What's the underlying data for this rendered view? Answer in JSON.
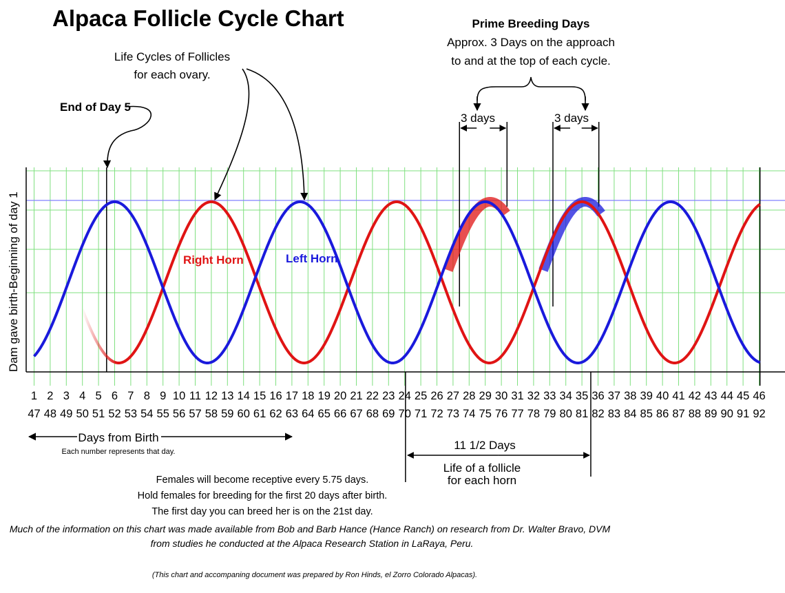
{
  "header": {
    "title": "Alpaca Follicle Cycle Chart"
  },
  "annotations": {
    "prime_title": "Prime Breeding Days",
    "prime_line1": "Approx. 3 Days on the approach",
    "prime_line2": "to and at the top of each cycle.",
    "life_cycles_line1": "Life Cycles of Follicles",
    "life_cycles_line2": "for each ovary.",
    "end_of_day5": "End of Day 5",
    "three_days_a": "3 days",
    "three_days_b": "3 days",
    "right_horn": "Right Horn",
    "left_horn": "Left Horn",
    "ylabel": "Dam gave birth-Beginning of day 1",
    "days_from_birth": "Days from Birth",
    "days_from_birth_sub": "Each number represents that day.",
    "follicle_days": "11 1/2 Days",
    "follicle_life_line1": "Life of a follicle",
    "follicle_life_line2": "for each horn"
  },
  "notes": {
    "line1": "Females will become receptive every 5.75 days.",
    "line2": "Hold females for breeding for the first 20 days after birth.",
    "line3": "The first day you can breed her is on the 21st day.",
    "italic1": "Much of the information on this chart was made available from Bob and Barb Hance (Hance Ranch) on research from Dr. Walter Bravo, DVM",
    "italic2": "from studies he conducted at the Alpaca Research Station in LaRaya, Peru.",
    "credit": "(This chart and accompaning document was prepared by Ron Hinds, el Zorro Colorado Alpacas)."
  },
  "chart_data": {
    "type": "line",
    "title": "Alpaca Follicle Cycle Chart",
    "ylabel": "Dam gave birth-Beginning of day 1",
    "xlabel": "Days from Birth",
    "x_row1": [
      1,
      2,
      3,
      4,
      5,
      6,
      7,
      8,
      9,
      10,
      11,
      12,
      13,
      14,
      15,
      16,
      17,
      18,
      19,
      20,
      21,
      22,
      23,
      24,
      25,
      26,
      27,
      28,
      29,
      30,
      31,
      32,
      33,
      34,
      35,
      36,
      37,
      38,
      39,
      40,
      41,
      42,
      43,
      44,
      45,
      46
    ],
    "x_row2": [
      47,
      48,
      49,
      50,
      51,
      52,
      53,
      54,
      55,
      56,
      57,
      58,
      59,
      60,
      61,
      62,
      63,
      64,
      65,
      66,
      67,
      68,
      69,
      70,
      71,
      72,
      73,
      74,
      75,
      76,
      77,
      78,
      79,
      80,
      81,
      82,
      83,
      84,
      85,
      86,
      87,
      88,
      89,
      90,
      91,
      92
    ],
    "period_days": 11.5,
    "receptive_every_days": 5.75,
    "series": [
      {
        "name": "Left Horn",
        "color": "#1a1adc",
        "peak_days": [
          6.0,
          17.5,
          29.0,
          40.5
        ],
        "trough_days": [
          1.0,
          12.0,
          23.5,
          35.0,
          46.0
        ]
      },
      {
        "name": "Right Horn",
        "color": "#e01414",
        "peak_days": [
          12.0,
          23.5,
          35.0,
          46.0
        ],
        "trough_days": [
          6.0,
          17.5,
          29.0,
          40.5
        ]
      }
    ],
    "grid": true,
    "grid_color": "#7fe07f",
    "peak_line_color": "#8080ff"
  }
}
